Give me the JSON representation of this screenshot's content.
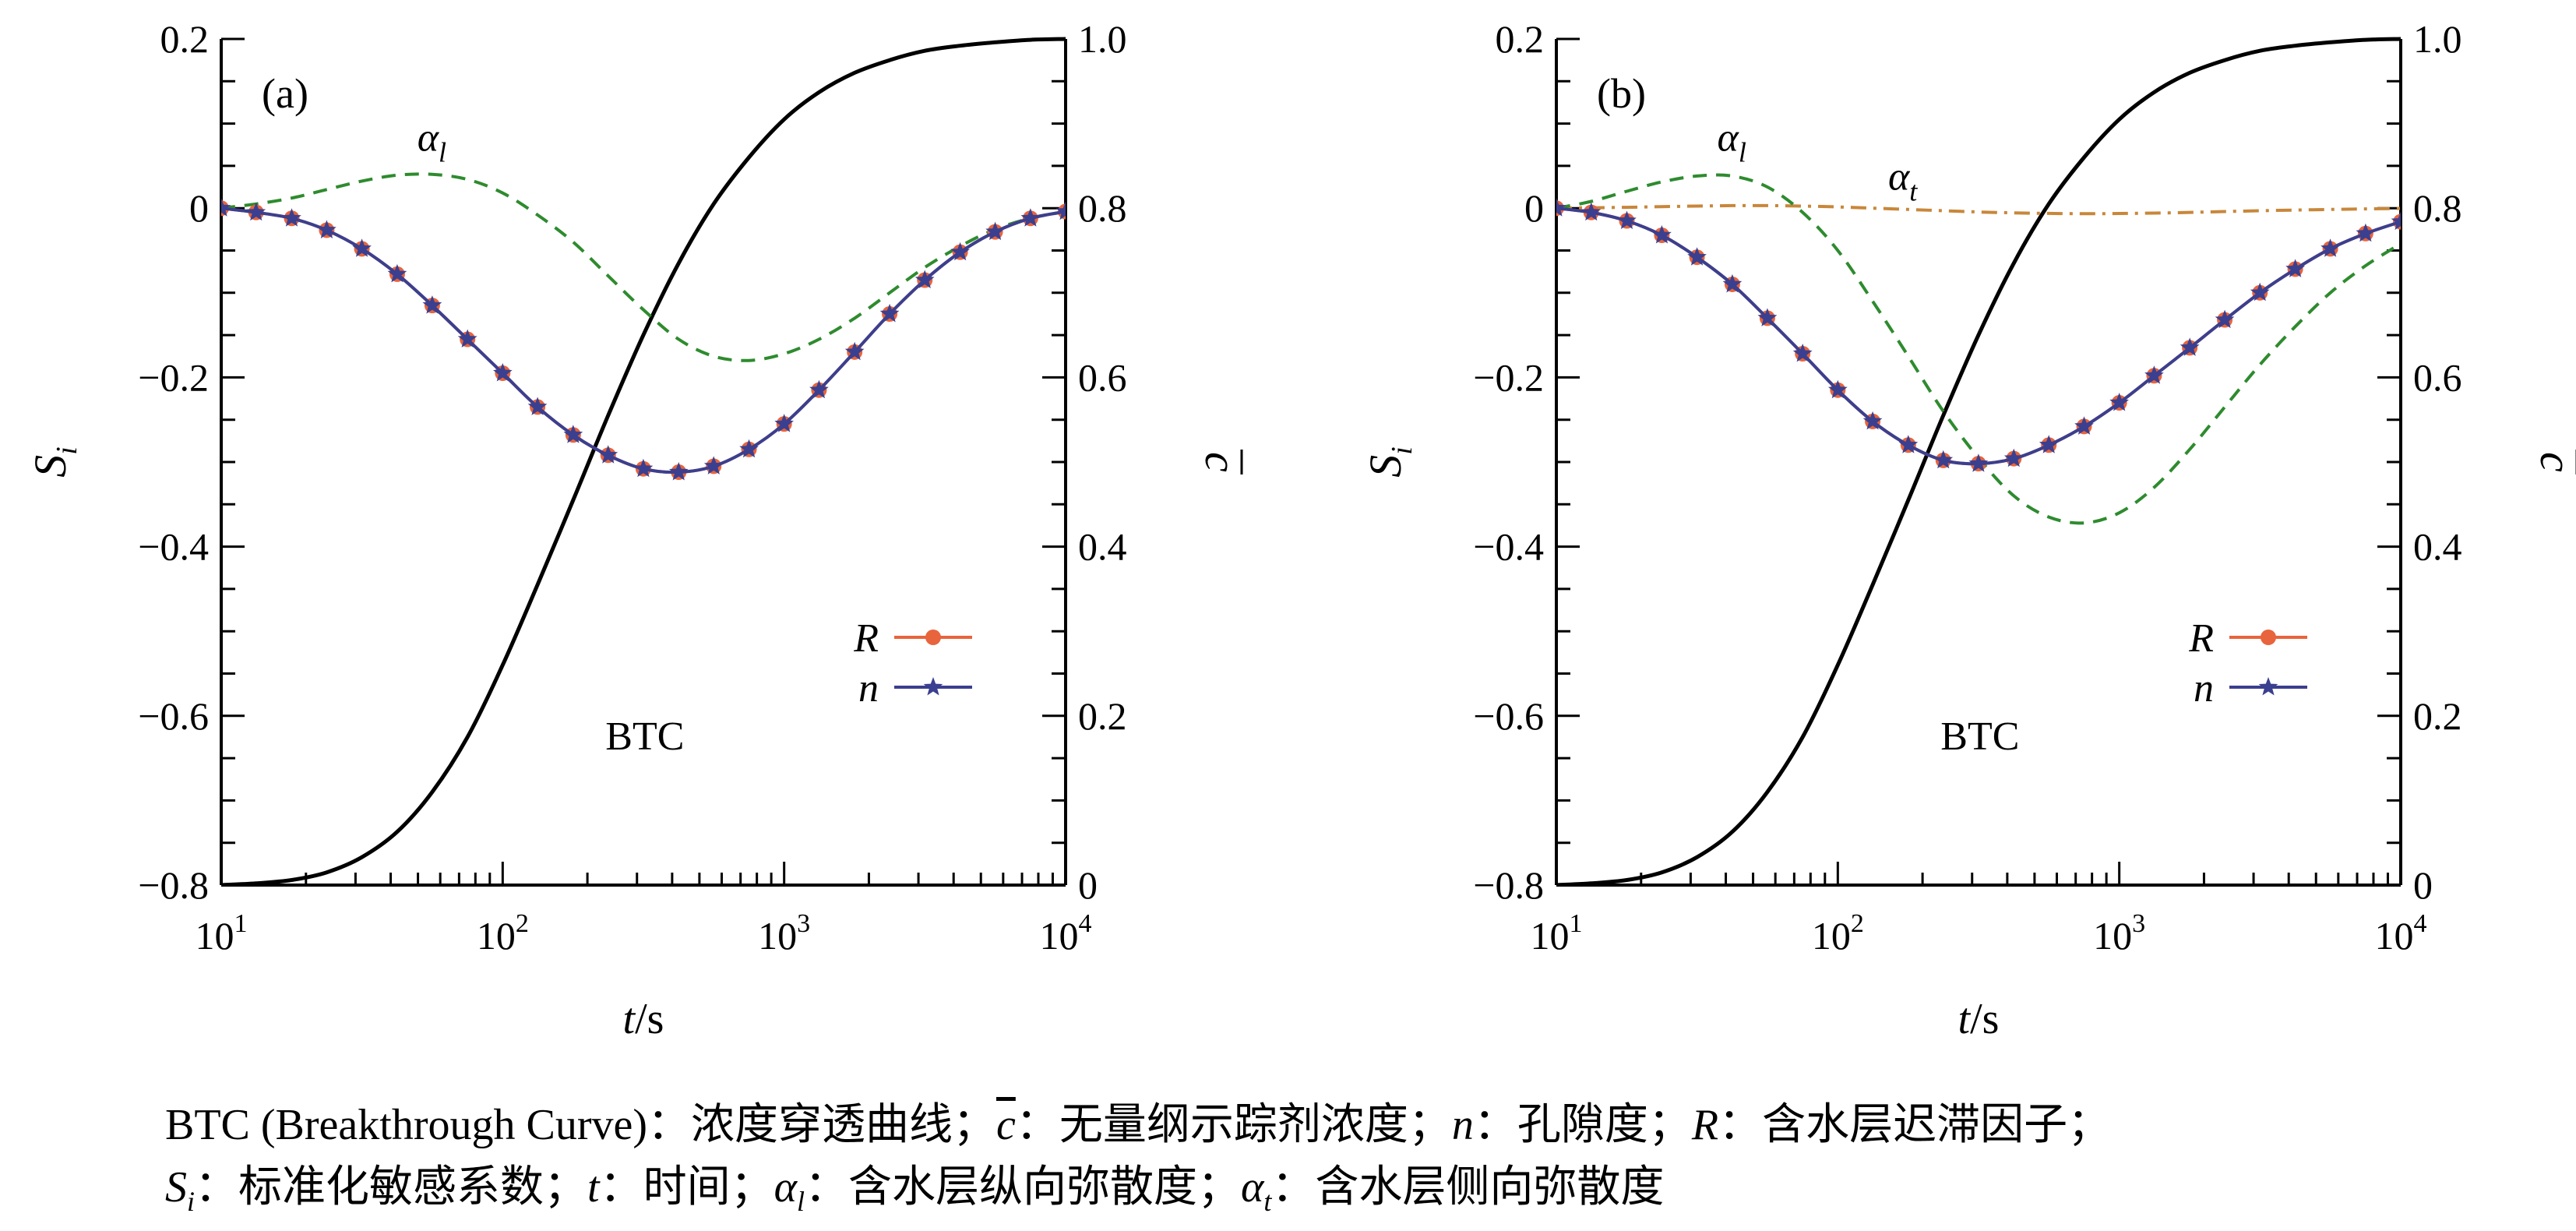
{
  "chart_data": [
    {
      "type": "line",
      "panel_label": "(a)",
      "xlabel_italic": "t",
      "xlabel_unit": "/s",
      "ylabel_left": "S",
      "ylabel_left_sub": "i",
      "ylabel_right": "c",
      "x_scale": "log",
      "xlim": [
        10,
        10000
      ],
      "x_ticks": [
        10,
        100,
        1000,
        10000
      ],
      "x_tick_labels": [
        {
          "base": "10",
          "exp": "1"
        },
        {
          "base": "10",
          "exp": "2"
        },
        {
          "base": "10",
          "exp": "3"
        },
        {
          "base": "10",
          "exp": "4"
        }
      ],
      "ylim_left": [
        -0.8,
        0.2
      ],
      "y_ticks_left": [
        -0.8,
        -0.6,
        -0.4,
        -0.2,
        0,
        0.2
      ],
      "y_tick_labels_left": [
        "−0.8",
        "−0.6",
        "−0.4",
        "−0.2",
        "0",
        "0.2"
      ],
      "ylim_right": [
        0,
        1
      ],
      "y_ticks_right": [
        0,
        0.2,
        0.4,
        0.6,
        0.8,
        1.0
      ],
      "y_tick_labels_right": [
        "0",
        "0.2",
        "0.4",
        "0.6",
        "0.8",
        "1.0"
      ],
      "grid": false,
      "legend_position": "bottom-right",
      "legend": [
        {
          "label": "R",
          "color": "#e8643c",
          "marker": "circle"
        },
        {
          "label": "n",
          "color": "#3b3f8f",
          "marker": "star"
        }
      ],
      "series": [
        {
          "name": "R",
          "axis": "left",
          "color": "#e8643c",
          "style": "solid",
          "marker": "circle",
          "x": [
            10,
            13.3,
            17.8,
            23.7,
            31.6,
            42.2,
            56.2,
            75,
            100,
            133,
            178,
            237,
            316,
            422,
            562,
            750,
            1000,
            1330,
            1780,
            2370,
            3160,
            4220,
            5620,
            7500,
            10000
          ],
          "y": [
            0,
            -0.005,
            -0.012,
            -0.026,
            -0.048,
            -0.078,
            -0.115,
            -0.155,
            -0.195,
            -0.235,
            -0.268,
            -0.292,
            -0.308,
            -0.312,
            -0.305,
            -0.285,
            -0.255,
            -0.215,
            -0.17,
            -0.125,
            -0.085,
            -0.052,
            -0.028,
            -0.012,
            -0.004
          ]
        },
        {
          "name": "n",
          "axis": "left",
          "color": "#3b3f8f",
          "style": "solid",
          "marker": "star",
          "x": [
            10,
            13.3,
            17.8,
            23.7,
            31.6,
            42.2,
            56.2,
            75,
            100,
            133,
            178,
            237,
            316,
            422,
            562,
            750,
            1000,
            1330,
            1780,
            2370,
            3160,
            4220,
            5620,
            7500,
            10000
          ],
          "y": [
            0,
            -0.005,
            -0.012,
            -0.026,
            -0.048,
            -0.078,
            -0.115,
            -0.155,
            -0.195,
            -0.235,
            -0.268,
            -0.292,
            -0.308,
            -0.312,
            -0.305,
            -0.285,
            -0.255,
            -0.215,
            -0.17,
            -0.125,
            -0.085,
            -0.052,
            -0.028,
            -0.012,
            -0.004
          ]
        },
        {
          "name": "αl",
          "axis": "left",
          "color": "#2e8b2e",
          "style": "dashed",
          "marker": "none",
          "x": [
            10,
            13.3,
            17.8,
            23.7,
            31.6,
            42.2,
            56.2,
            75,
            100,
            133,
            178,
            237,
            316,
            422,
            562,
            750,
            1000,
            1330,
            1780,
            2370,
            3160,
            4220,
            5620,
            7500,
            10000
          ],
          "y": [
            0,
            0.005,
            0.012,
            0.022,
            0.032,
            0.039,
            0.04,
            0.034,
            0.018,
            -0.008,
            -0.04,
            -0.08,
            -0.12,
            -0.155,
            -0.175,
            -0.18,
            -0.172,
            -0.155,
            -0.13,
            -0.1,
            -0.07,
            -0.045,
            -0.025,
            -0.012,
            -0.004
          ]
        },
        {
          "name": "BTC",
          "axis": "right",
          "color": "#000000",
          "style": "solid",
          "marker": "none",
          "x": [
            10,
            13.3,
            17.8,
            23.7,
            31.6,
            42.2,
            56.2,
            75,
            100,
            133,
            178,
            237,
            316,
            422,
            562,
            750,
            1000,
            1330,
            1780,
            2370,
            3160,
            4220,
            5620,
            7500,
            10000
          ],
          "y": [
            0,
            0.002,
            0.006,
            0.015,
            0.033,
            0.063,
            0.11,
            0.175,
            0.26,
            0.355,
            0.455,
            0.555,
            0.65,
            0.735,
            0.805,
            0.86,
            0.905,
            0.937,
            0.96,
            0.975,
            0.986,
            0.992,
            0.996,
            0.999,
            1.0
          ]
        }
      ],
      "annotations": [
        {
          "text": "BTC",
          "x": 320,
          "y": 0.16,
          "axis": "right",
          "italic": false
        },
        {
          "text": "α",
          "sub": "l",
          "x": 56,
          "y": 0.068,
          "axis": "left",
          "italic": true
        }
      ]
    },
    {
      "type": "line",
      "panel_label": "(b)",
      "xlabel_italic": "t",
      "xlabel_unit": "/s",
      "ylabel_left": "S",
      "ylabel_left_sub": "i",
      "ylabel_right": "c",
      "x_scale": "log",
      "xlim": [
        10,
        10000
      ],
      "x_ticks": [
        10,
        100,
        1000,
        10000
      ],
      "x_tick_labels": [
        {
          "base": "10",
          "exp": "1"
        },
        {
          "base": "10",
          "exp": "2"
        },
        {
          "base": "10",
          "exp": "3"
        },
        {
          "base": "10",
          "exp": "4"
        }
      ],
      "ylim_left": [
        -0.8,
        0.2
      ],
      "y_ticks_left": [
        -0.8,
        -0.6,
        -0.4,
        -0.2,
        0,
        0.2
      ],
      "y_tick_labels_left": [
        "−0.8",
        "−0.6",
        "−0.4",
        "−0.2",
        "0",
        "0.2"
      ],
      "ylim_right": [
        0,
        1
      ],
      "y_ticks_right": [
        0,
        0.2,
        0.4,
        0.6,
        0.8,
        1.0
      ],
      "y_tick_labels_right": [
        "0",
        "0.2",
        "0.4",
        "0.6",
        "0.8",
        "1.0"
      ],
      "grid": false,
      "legend_position": "bottom-right",
      "legend": [
        {
          "label": "R",
          "color": "#e8643c",
          "marker": "circle"
        },
        {
          "label": "n",
          "color": "#3b3f8f",
          "marker": "star"
        }
      ],
      "series": [
        {
          "name": "R",
          "axis": "left",
          "color": "#e8643c",
          "style": "solid",
          "marker": "circle",
          "x": [
            10,
            13.3,
            17.8,
            23.7,
            31.6,
            42.2,
            56.2,
            75,
            100,
            133,
            178,
            237,
            316,
            422,
            562,
            750,
            1000,
            1330,
            1780,
            2370,
            3160,
            4220,
            5620,
            7500,
            10000
          ],
          "y": [
            0,
            -0.005,
            -0.015,
            -0.032,
            -0.058,
            -0.09,
            -0.13,
            -0.172,
            -0.215,
            -0.252,
            -0.28,
            -0.298,
            -0.302,
            -0.296,
            -0.28,
            -0.258,
            -0.23,
            -0.198,
            -0.165,
            -0.132,
            -0.1,
            -0.072,
            -0.048,
            -0.03,
            -0.016
          ]
        },
        {
          "name": "n",
          "axis": "left",
          "color": "#3b3f8f",
          "style": "solid",
          "marker": "star",
          "x": [
            10,
            13.3,
            17.8,
            23.7,
            31.6,
            42.2,
            56.2,
            75,
            100,
            133,
            178,
            237,
            316,
            422,
            562,
            750,
            1000,
            1330,
            1780,
            2370,
            3160,
            4220,
            5620,
            7500,
            10000
          ],
          "y": [
            0,
            -0.005,
            -0.015,
            -0.032,
            -0.058,
            -0.09,
            -0.13,
            -0.172,
            -0.215,
            -0.252,
            -0.28,
            -0.298,
            -0.302,
            -0.296,
            -0.28,
            -0.258,
            -0.23,
            -0.198,
            -0.165,
            -0.132,
            -0.1,
            -0.072,
            -0.048,
            -0.03,
            -0.016
          ]
        },
        {
          "name": "αl",
          "axis": "left",
          "color": "#2e8b2e",
          "style": "dashed",
          "marker": "none",
          "x": [
            10,
            13.3,
            17.8,
            23.7,
            31.6,
            42.2,
            56.2,
            75,
            100,
            133,
            178,
            237,
            316,
            422,
            562,
            750,
            1000,
            1330,
            1780,
            2370,
            3160,
            4220,
            5620,
            7500,
            10000
          ],
          "y": [
            0,
            0.008,
            0.02,
            0.031,
            0.038,
            0.038,
            0.025,
            -0.005,
            -0.05,
            -0.11,
            -0.175,
            -0.24,
            -0.295,
            -0.34,
            -0.365,
            -0.372,
            -0.36,
            -0.33,
            -0.285,
            -0.235,
            -0.185,
            -0.14,
            -0.1,
            -0.068,
            -0.042
          ]
        },
        {
          "name": "αt",
          "axis": "left",
          "color": "#c8873a",
          "style": "dashdot",
          "marker": "none",
          "x": [
            10,
            13.3,
            17.8,
            23.7,
            31.6,
            42.2,
            56.2,
            75,
            100,
            133,
            178,
            237,
            316,
            422,
            562,
            750,
            1000,
            1330,
            1780,
            2370,
            3160,
            4220,
            5620,
            7500,
            10000
          ],
          "y": [
            0,
            0.0005,
            0.001,
            0.0018,
            0.0025,
            0.003,
            0.003,
            0.0025,
            0.0015,
            0,
            -0.0015,
            -0.003,
            -0.0045,
            -0.0055,
            -0.0062,
            -0.0065,
            -0.0063,
            -0.0058,
            -0.005,
            -0.004,
            -0.003,
            -0.0022,
            -0.0015,
            -0.0008,
            -0.0003
          ]
        },
        {
          "name": "BTC",
          "axis": "right",
          "color": "#000000",
          "style": "solid",
          "marker": "none",
          "x": [
            10,
            13.3,
            17.8,
            23.7,
            31.6,
            42.2,
            56.2,
            75,
            100,
            133,
            178,
            237,
            316,
            422,
            562,
            750,
            1000,
            1330,
            1780,
            2370,
            3160,
            4220,
            5620,
            7500,
            10000
          ],
          "y": [
            0,
            0.002,
            0.006,
            0.015,
            0.033,
            0.063,
            0.11,
            0.175,
            0.26,
            0.355,
            0.455,
            0.555,
            0.65,
            0.735,
            0.805,
            0.86,
            0.905,
            0.937,
            0.96,
            0.975,
            0.986,
            0.992,
            0.996,
            0.999,
            1.0
          ]
        }
      ],
      "annotations": [
        {
          "text": "BTC",
          "x": 320,
          "y": 0.16,
          "axis": "right",
          "italic": false
        },
        {
          "text": "α",
          "sub": "l",
          "x": 42,
          "y": 0.068,
          "axis": "left",
          "italic": true
        },
        {
          "text": "α",
          "sub": "t",
          "x": 170,
          "y": 0.022,
          "axis": "left",
          "italic": true
        }
      ]
    }
  ],
  "caption": {
    "line1": {
      "p1": "BTC (Breakthrough Curve)：浓度穿透曲线；",
      "c_symbol": "c",
      "p2": "：无量纲示踪剂浓度；",
      "n_symbol": "n",
      "p3": "：孔隙度；",
      "r_symbol": "R",
      "p4": "：含水层迟滞因子；"
    },
    "line2": {
      "s_symbol": "S",
      "s_sub": "i",
      "p1": "：标准化敏感系数；",
      "t_symbol": "t",
      "p2": "：时间；",
      "al_symbol": "α",
      "al_sub": "l",
      "p3": "：含水层纵向弥散度；",
      "at_symbol": "α",
      "at_sub": "t",
      "p4": "：含水层侧向弥散度"
    }
  }
}
